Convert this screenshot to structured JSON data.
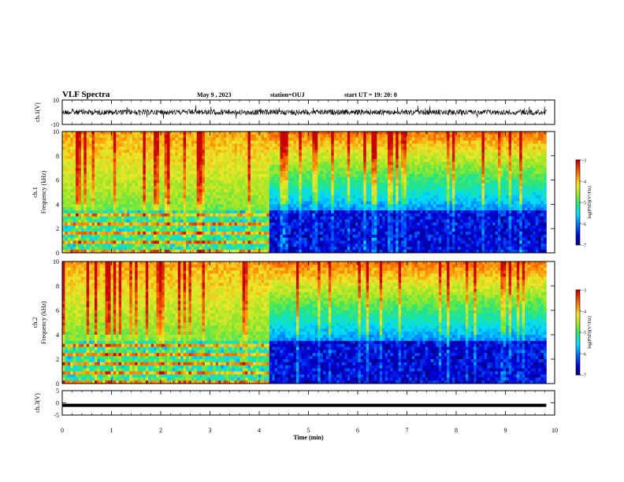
{
  "header": {
    "title": "VLF Spectra",
    "date": "May 9 , 2023",
    "station": "station=OUJ",
    "start": "start UT = 19: 20: 0"
  },
  "chart_data": [
    {
      "type": "line",
      "panel": "ch1-waveform",
      "ylabel": "ch.1(V)",
      "ylim": [
        -10,
        10
      ],
      "yticks": [
        10,
        -10
      ],
      "xlim": [
        0,
        10
      ],
      "series": [
        {
          "values_description_level": 0
        }
      ]
    },
    {
      "type": "heatmap",
      "panel": "ch1-spectrogram",
      "ylabel_top": "ch.1",
      "ylabel": "Frequency (kHz)",
      "ylim": [
        0,
        10
      ],
      "yticks": [
        0,
        2,
        4,
        6,
        8,
        10
      ],
      "xlim": [
        0,
        10
      ],
      "data_end_min": 9.83,
      "transition_min": 4.17,
      "colorbar": {
        "label": "log(PSD)(V²/Hz)",
        "min": -7,
        "max": -3,
        "ticks": [
          -3,
          -4,
          -5,
          -6,
          -7
        ]
      }
    },
    {
      "type": "heatmap",
      "panel": "ch2-spectrogram",
      "ylabel_top": "ch.2",
      "ylabel": "Frequency (kHz)",
      "ylim": [
        0,
        10
      ],
      "yticks": [
        0,
        2,
        4,
        6,
        8,
        10
      ],
      "xlim": [
        0,
        10
      ],
      "data_end_min": 9.83,
      "transition_min": 4.17,
      "colorbar": {
        "label": "log(PSD)(V²/Hz)",
        "min": -7,
        "max": -3,
        "ticks": [
          -3,
          -4,
          -5,
          -6,
          -7
        ]
      }
    },
    {
      "type": "line",
      "panel": "ch3-waveform",
      "ylabel": "ch.3(V)",
      "ylim": [
        -5,
        5
      ],
      "yticks": [
        5,
        0,
        -5
      ],
      "xlim": [
        0,
        10
      ],
      "series": [
        {
          "constant_value": -1
        }
      ]
    }
  ],
  "xaxis": {
    "label": "Time (min)",
    "ticks": [
      0,
      1,
      2,
      3,
      4,
      5,
      6,
      7,
      8,
      9,
      10
    ]
  }
}
